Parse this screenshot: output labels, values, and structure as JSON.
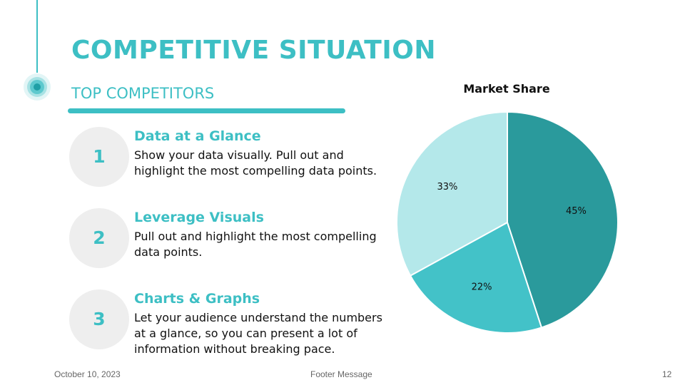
{
  "slide": {
    "title": "COMPETITIVE SITUATION",
    "subtitle": "TOP COMPETITORS",
    "accent_color": "#3dbfc4"
  },
  "items": [
    {
      "number": "1",
      "heading": "Data at a Glance",
      "text": "Show your data visually. Pull out and highlight the most compelling data points."
    },
    {
      "number": "2",
      "heading": "Leverage Visuals",
      "text": "Pull out and highlight the most compelling data points."
    },
    {
      "number": "3",
      "heading": "Charts & Graphs",
      "text": "Let your audience understand the numbers at a glance, so you can present a lot of information without breaking pace."
    }
  ],
  "chart_data": {
    "type": "pie",
    "title": "Market Share",
    "legend": "none",
    "slices": [
      {
        "label": "45%",
        "value": 45,
        "color": "#2a9a9c"
      },
      {
        "label": "22%",
        "value": 22,
        "color": "#43c2c8"
      },
      {
        "label": "33%",
        "value": 33,
        "color": "#b4e8ea"
      }
    ]
  },
  "footer": {
    "date": "October 10, 2023",
    "message": "Footer Message",
    "page_number": "12"
  }
}
